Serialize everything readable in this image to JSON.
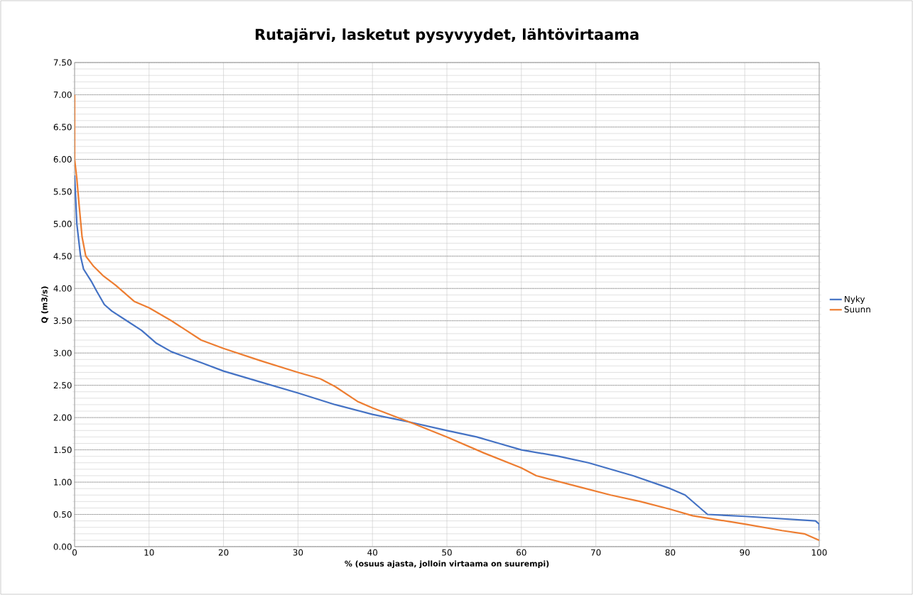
{
  "chart_data": {
    "type": "line",
    "title": "Rutajärvi, lasketut pysyvyydet, lähtövirtaama",
    "xlabel": "% (osuus ajasta, jolloin virtaama on suurempi)",
    "ylabel": "Q (m3/s)",
    "xlim": [
      0,
      100
    ],
    "xticks": [
      0,
      10,
      20,
      30,
      40,
      50,
      60,
      70,
      80,
      90,
      100
    ],
    "ylim": [
      0,
      7.5
    ],
    "yticks": [
      {
        "value": 0,
        "label": "0.00"
      },
      {
        "value": 0.5,
        "label": "0.50"
      },
      {
        "value": 1,
        "label": "1.00"
      },
      {
        "value": 1.5,
        "label": "1.50"
      },
      {
        "value": 2,
        "label": "2.00"
      },
      {
        "value": 2.5,
        "label": "2.50"
      },
      {
        "value": 3,
        "label": "3.00"
      },
      {
        "value": 3.5,
        "label": "3.50"
      },
      {
        "value": 4,
        "label": "4.00"
      },
      {
        "value": 4.5,
        "label": "4.50"
      },
      {
        "value": 5,
        "label": "5.00"
      },
      {
        "value": 5.5,
        "label": "5.50"
      },
      {
        "value": 6,
        "label": "6.00"
      },
      {
        "value": 6.5,
        "label": "6.50"
      },
      {
        "value": 7,
        "label": "7.00"
      },
      {
        "value": 7.5,
        "label": "7.50"
      }
    ],
    "grid": true,
    "legend": "right",
    "marker": "none",
    "line_style": "solid",
    "series": [
      {
        "name": "Nyky",
        "color": "#4472c4",
        "x": [
          0,
          0.3,
          0.8,
          1.2,
          2.3,
          3,
          4,
          5,
          7,
          9,
          11,
          13,
          17,
          20,
          25,
          30,
          35,
          40,
          45,
          50,
          54,
          57,
          60,
          65,
          69,
          75,
          80,
          82,
          85,
          90,
          99.5,
          100,
          100
        ],
        "values": [
          5.75,
          5.0,
          4.5,
          4.3,
          4.1,
          3.95,
          3.75,
          3.65,
          3.5,
          3.35,
          3.15,
          3.02,
          2.85,
          2.72,
          2.55,
          2.38,
          2.2,
          2.05,
          1.93,
          1.8,
          1.7,
          1.6,
          1.5,
          1.4,
          1.3,
          1.1,
          0.9,
          0.8,
          0.5,
          0.47,
          0.4,
          0.35,
          0.25
        ]
      },
      {
        "name": "Suunn",
        "color": "#ed7d31",
        "x": [
          0,
          0,
          0.3,
          0.6,
          1,
          1.5,
          2.5,
          3.8,
          5.5,
          8,
          10,
          13,
          17,
          20,
          25,
          30,
          33,
          35,
          38,
          40,
          45,
          50,
          55,
          60,
          62,
          68,
          72,
          76,
          80,
          83,
          90,
          95,
          98,
          100
        ],
        "values": [
          7.0,
          6.0,
          5.7,
          5.3,
          4.8,
          4.5,
          4.35,
          4.2,
          4.05,
          3.8,
          3.7,
          3.5,
          3.2,
          3.07,
          2.88,
          2.7,
          2.6,
          2.48,
          2.25,
          2.15,
          1.93,
          1.7,
          1.45,
          1.22,
          1.1,
          0.92,
          0.8,
          0.7,
          0.58,
          0.48,
          0.35,
          0.25,
          0.2,
          0.1
        ]
      }
    ]
  }
}
